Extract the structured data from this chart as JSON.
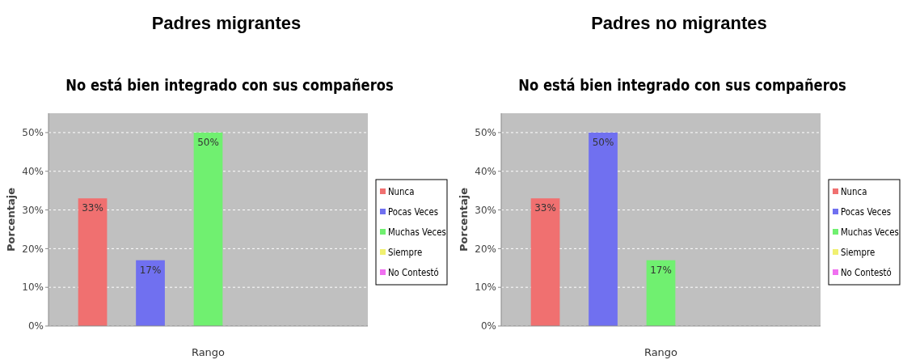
{
  "chart_data": [
    {
      "type": "bar",
      "title": "Padres migrantes",
      "subtitle": "No está bien integrado con sus compañeros",
      "xlabel": "Rango",
      "ylabel": "Porcentaje",
      "categories": [
        null
      ],
      "series": [
        {
          "name": "Nunca",
          "color": "#f07070",
          "values": [
            33
          ],
          "value_labels": [
            "33%"
          ]
        },
        {
          "name": "Pocas Veces",
          "color": "#7070f0",
          "values": [
            17
          ],
          "value_labels": [
            "17%"
          ]
        },
        {
          "name": "Muchas Veces",
          "color": "#70f070",
          "values": [
            50
          ],
          "value_labels": [
            "50%"
          ]
        },
        {
          "name": "Siempre",
          "color": "#f0f070",
          "values": [
            0
          ],
          "value_labels": [
            null
          ]
        },
        {
          "name": "No Contestó",
          "color": "#f070f0",
          "values": [
            0
          ],
          "value_labels": [
            null
          ]
        }
      ],
      "ylim": [
        0,
        55
      ],
      "yticks": [
        {
          "value": 0,
          "label": "0%"
        },
        {
          "value": 10,
          "label": "10%"
        },
        {
          "value": 20,
          "label": "20%"
        },
        {
          "value": 30,
          "label": "30%"
        },
        {
          "value": 40,
          "label": "40%"
        },
        {
          "value": 50,
          "label": "50%"
        }
      ],
      "grid": "y",
      "legend": "right"
    },
    {
      "type": "bar",
      "title": "Padres no migrantes",
      "subtitle": "No está bien integrado con sus compañeros",
      "xlabel": "Rango",
      "ylabel": "Porcentaje",
      "categories": [
        null
      ],
      "series": [
        {
          "name": "Nunca",
          "color": "#f07070",
          "values": [
            33
          ],
          "value_labels": [
            "33%"
          ]
        },
        {
          "name": "Pocas Veces",
          "color": "#7070f0",
          "values": [
            50
          ],
          "value_labels": [
            "50%"
          ]
        },
        {
          "name": "Muchas Veces",
          "color": "#70f070",
          "values": [
            17
          ],
          "value_labels": [
            "17%"
          ]
        },
        {
          "name": "Siempre",
          "color": "#f0f070",
          "values": [
            0
          ],
          "value_labels": [
            null
          ]
        },
        {
          "name": "No Contestó",
          "color": "#f070f0",
          "values": [
            0
          ],
          "value_labels": [
            null
          ]
        }
      ],
      "ylim": [
        0,
        55
      ],
      "yticks": [
        {
          "value": 0,
          "label": "0%"
        },
        {
          "value": 10,
          "label": "10%"
        },
        {
          "value": 20,
          "label": "20%"
        },
        {
          "value": 30,
          "label": "30%"
        },
        {
          "value": 40,
          "label": "40%"
        },
        {
          "value": 50,
          "label": "50%"
        }
      ],
      "grid": "y",
      "legend": "right"
    }
  ]
}
